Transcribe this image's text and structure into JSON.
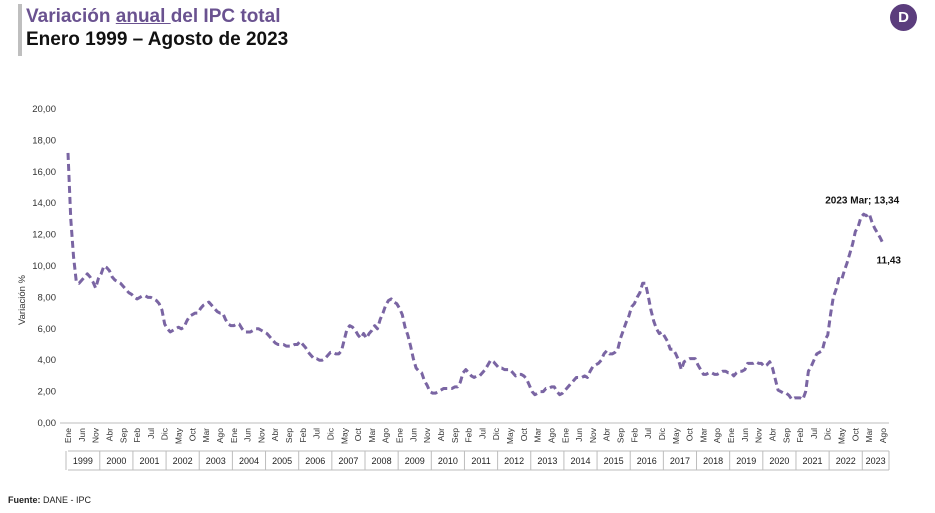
{
  "header": {
    "title_pre": "Variación ",
    "title_u": "anual ",
    "title_post": "del IPC total",
    "subtitle": "Enero 1999 – Agosto de 2023",
    "logo_glyph": "D"
  },
  "footer": {
    "source_label": "Fuente:",
    "source_value": " DANE - IPC"
  },
  "colors": {
    "line": "#7a65a3",
    "title": "#6a5290",
    "logo": "#5b3d7d"
  },
  "chart_data": {
    "type": "line",
    "ylabel": "Variación %",
    "xlabel": "",
    "ylim": [
      0,
      20
    ],
    "yticks": [
      "0,00",
      "2,00",
      "4,00",
      "6,00",
      "8,00",
      "10,00",
      "12,00",
      "14,00",
      "16,00",
      "18,00",
      "20,00"
    ],
    "grid": false,
    "line_style": "dashed",
    "x_start": "1999-01",
    "month_labels": [
      "Ene",
      "Jun",
      "Nov",
      "Abr",
      "Sep",
      "Feb",
      "Jul",
      "Dic",
      "May",
      "Oct",
      "Mar",
      "Ago"
    ],
    "years": [
      "1999",
      "2000",
      "2001",
      "2002",
      "2003",
      "2004",
      "2005",
      "2006",
      "2007",
      "2008",
      "2009",
      "2010",
      "2011",
      "2012",
      "2013",
      "2014",
      "2015",
      "2016",
      "2017",
      "2018",
      "2019",
      "2020",
      "2021",
      "2022",
      "2023"
    ],
    "annotations": [
      {
        "date": "2023-03",
        "value": 13.34,
        "label": "2023 Mar; 13,34"
      },
      {
        "date": "2023-08",
        "value": 11.43,
        "label": "11,43"
      }
    ],
    "series": [
      {
        "values": [
          17.2,
          13.0,
          10.6,
          9.0,
          8.9,
          9.1,
          9.3,
          9.5,
          9.3,
          9.0,
          8.6,
          9.2,
          9.5,
          10.0,
          9.9,
          9.7,
          9.3,
          9.1,
          9.0,
          8.9,
          8.7,
          8.5,
          8.3,
          8.2,
          8.0,
          7.9,
          8.0,
          8.1,
          8.1,
          8.0,
          8.0,
          7.9,
          7.8,
          7.6,
          7.2,
          6.3,
          6.0,
          5.8,
          5.9,
          6.0,
          6.1,
          6.0,
          6.1,
          6.5,
          6.8,
          6.9,
          7.0,
          7.0,
          7.3,
          7.5,
          7.6,
          7.7,
          7.5,
          7.3,
          7.1,
          7.0,
          7.0,
          6.6,
          6.3,
          6.2,
          6.2,
          6.3,
          6.3,
          6.0,
          5.8,
          5.8,
          5.8,
          5.9,
          6.0,
          6.0,
          5.9,
          5.8,
          5.7,
          5.5,
          5.3,
          5.1,
          5.0,
          5.0,
          5.0,
          4.9,
          4.9,
          4.9,
          5.0,
          5.0,
          5.2,
          5.0,
          4.8,
          4.5,
          4.3,
          4.1,
          4.1,
          4.0,
          4.0,
          4.1,
          4.3,
          4.5,
          4.5,
          4.4,
          4.4,
          4.6,
          5.3,
          6.0,
          6.2,
          6.1,
          5.9,
          5.6,
          5.4,
          5.7,
          5.4,
          5.7,
          5.9,
          6.2,
          6.0,
          6.6,
          7.0,
          7.5,
          7.8,
          7.9,
          7.7,
          7.6,
          7.3,
          6.9,
          6.1,
          5.6,
          4.9,
          4.1,
          3.5,
          3.3,
          3.2,
          2.7,
          2.4,
          2.0,
          1.9,
          1.9,
          2.0,
          2.1,
          2.2,
          2.2,
          2.2,
          2.2,
          2.3,
          2.3,
          2.6,
          3.2,
          3.4,
          3.2,
          3.0,
          2.9,
          3.0,
          3.0,
          3.2,
          3.4,
          3.7,
          4.0,
          3.9,
          3.7,
          3.5,
          3.5,
          3.4,
          3.4,
          3.4,
          3.2,
          3.0,
          3.1,
          3.1,
          3.0,
          2.8,
          2.4,
          2.0,
          1.8,
          1.9,
          2.0,
          2.0,
          2.2,
          2.2,
          2.3,
          2.3,
          2.0,
          1.8,
          1.9,
          2.1,
          2.3,
          2.5,
          2.7,
          2.9,
          2.9,
          2.9,
          3.0,
          2.9,
          3.3,
          3.6,
          3.7,
          3.8,
          4.0,
          4.4,
          4.6,
          4.4,
          4.4,
          4.5,
          4.7,
          5.4,
          5.9,
          6.4,
          6.8,
          7.4,
          7.6,
          8.0,
          8.3,
          8.9,
          8.9,
          8.1,
          7.2,
          6.5,
          6.0,
          5.7,
          5.8,
          5.5,
          5.2,
          4.7,
          4.7,
          4.4,
          4.0,
          3.4,
          3.9,
          4.0,
          4.1,
          4.1,
          4.1,
          3.7,
          3.4,
          3.1,
          3.1,
          3.2,
          3.2,
          3.1,
          3.1,
          3.2,
          3.3,
          3.3,
          3.2,
          3.2,
          3.0,
          3.2,
          3.3,
          3.3,
          3.4,
          3.8,
          3.8,
          3.8,
          3.9,
          3.8,
          3.8,
          3.6,
          3.7,
          3.9,
          3.5,
          2.8,
          2.1,
          2.0,
          1.9,
          1.9,
          1.75,
          1.5,
          1.6,
          1.6,
          1.6,
          1.5,
          2.0,
          3.3,
          3.6,
          4.0,
          4.4,
          4.5,
          4.6,
          5.3,
          5.6,
          6.9,
          8.0,
          8.5,
          9.2,
          9.1,
          9.7,
          10.2,
          10.8,
          11.4,
          12.2,
          12.5,
          13.1,
          13.3,
          13.2,
          13.34,
          12.8,
          12.4,
          12.1,
          11.8,
          11.43
        ]
      }
    ]
  }
}
